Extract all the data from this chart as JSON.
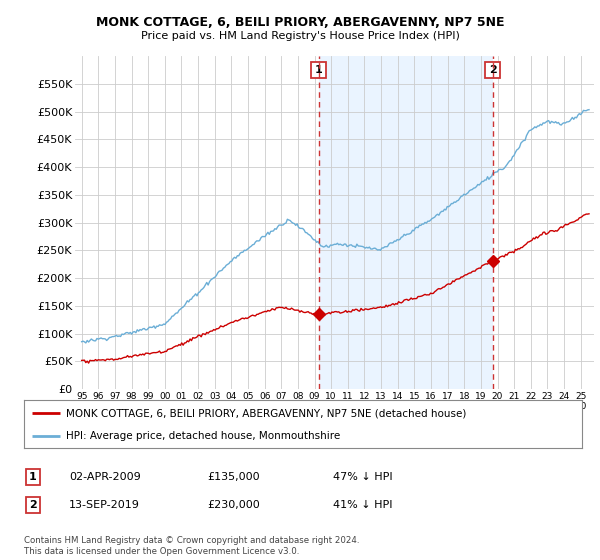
{
  "title": "MONK COTTAGE, 6, BEILI PRIORY, ABERGAVENNY, NP7 5NE",
  "subtitle": "Price paid vs. HM Land Registry's House Price Index (HPI)",
  "ylim": [
    0,
    600000
  ],
  "yticks": [
    0,
    50000,
    100000,
    150000,
    200000,
    250000,
    300000,
    350000,
    400000,
    450000,
    500000,
    550000
  ],
  "ytick_labels": [
    "£0",
    "£50K",
    "£100K",
    "£150K",
    "£200K",
    "£250K",
    "£300K",
    "£350K",
    "£400K",
    "£450K",
    "£500K",
    "£550K"
  ],
  "hpi_color": "#6baed6",
  "hpi_fill_color": "#ddeeff",
  "price_color": "#cc0000",
  "marker1_date": 2009.25,
  "marker1_price": 135000,
  "marker2_date": 2019.71,
  "marker2_price": 230000,
  "marker1_label": "1",
  "marker2_label": "2",
  "vline_color": "#cc3333",
  "legend_line1": "MONK COTTAGE, 6, BEILI PRIORY, ABERGAVENNY, NP7 5NE (detached house)",
  "legend_line2": "HPI: Average price, detached house, Monmouthshire",
  "footer": "Contains HM Land Registry data © Crown copyright and database right 2024.\nThis data is licensed under the Open Government Licence v3.0.",
  "background_color": "#ffffff"
}
